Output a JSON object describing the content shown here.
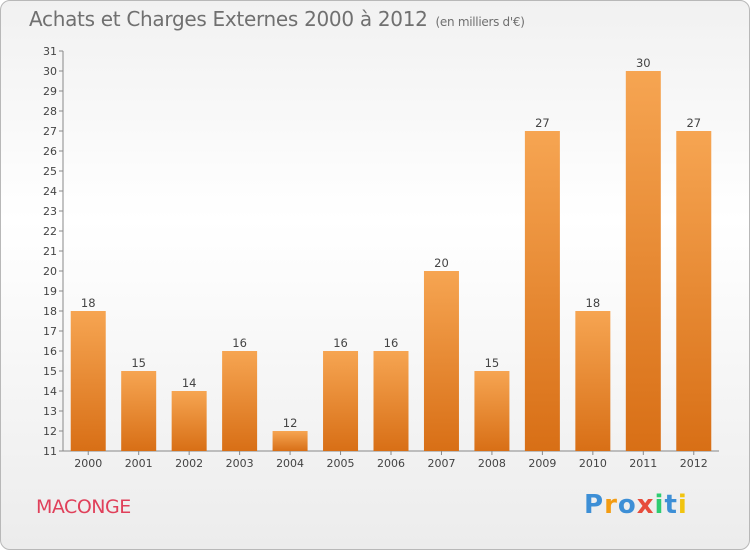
{
  "chart_data": {
    "type": "bar",
    "title": "Achats et Charges Externes 2000 à 2012",
    "unit": "(en milliers d'€)",
    "categories": [
      "2000",
      "2001",
      "2002",
      "2003",
      "2004",
      "2005",
      "2006",
      "2007",
      "2008",
      "2009",
      "2010",
      "2011",
      "2012"
    ],
    "values": [
      18,
      15,
      14,
      16,
      12,
      16,
      16,
      20,
      15,
      27,
      18,
      30,
      27
    ],
    "ylim": [
      11,
      31
    ],
    "yticks": [
      11,
      12,
      13,
      14,
      15,
      16,
      17,
      18,
      19,
      20,
      21,
      22,
      23,
      24,
      25,
      26,
      27,
      28,
      29,
      30,
      31
    ],
    "grid": false,
    "bar_color": "#f0963a"
  },
  "commune": "MACONGE",
  "logo": {
    "text": "Proxiti",
    "letters": [
      {
        "ch": "P",
        "color": "#3d8fd6"
      },
      {
        "ch": "r",
        "color": "#f39c12"
      },
      {
        "ch": "o",
        "color": "#3d8fd6"
      },
      {
        "ch": "x",
        "color": "#e74c3c"
      },
      {
        "ch": "i",
        "color": "#2ecc71"
      },
      {
        "ch": "t",
        "color": "#3d8fd6"
      },
      {
        "ch": "i",
        "color": "#f1c40f"
      }
    ]
  }
}
